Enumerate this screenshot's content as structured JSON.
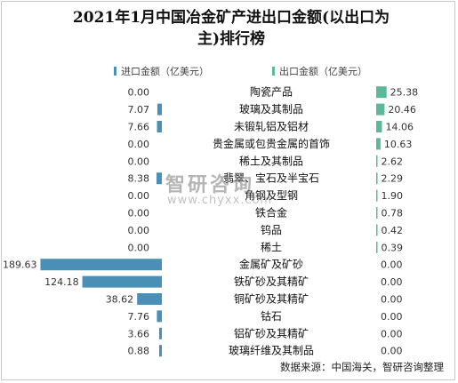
{
  "chart_data": {
    "type": "bar",
    "title": "2021年1月中国冶金矿产进出口金额(以出口为主)排行榜",
    "title_line1": "2021年1月中国冶金矿产进出口金额(以出口为",
    "title_line2": "主)排行榜",
    "legend_position": "top",
    "categories": [
      "陶瓷产品",
      "玻璃及其制品",
      "未锻轧铝及铝材",
      "贵金属或包贵金属的首饰",
      "稀土及其制品",
      "翡翠、宝石及半宝石",
      "角钢及型钢",
      "铁合金",
      "钨品",
      "稀土",
      "金属矿及矿砂",
      "铁矿砂及其精矿",
      "铜矿砂及其精矿",
      "钴石",
      "铝矿砂及其精矿",
      "玻璃纤维及其制品"
    ],
    "series": [
      {
        "name": "进口金额（亿美元）",
        "color": "#4a8fb8",
        "values": [
          0.0,
          7.07,
          7.66,
          0.0,
          0.0,
          8.38,
          0.0,
          0.0,
          0.0,
          0.0,
          189.63,
          124.18,
          38.62,
          7.76,
          3.66,
          0.88
        ]
      },
      {
        "name": "出口金额（亿美元）",
        "color": "#5bb89a",
        "values": [
          25.38,
          20.46,
          14.06,
          10.63,
          2.62,
          2.29,
          1.9,
          0.78,
          0.42,
          0.39,
          0.0,
          0.0,
          0.0,
          0.0,
          0.0,
          0.0
        ]
      }
    ]
  },
  "source": "数据来源：中国海关，智研咨询整理",
  "watermark": "智研咨询",
  "watermark_url": "www.chyxx.com"
}
